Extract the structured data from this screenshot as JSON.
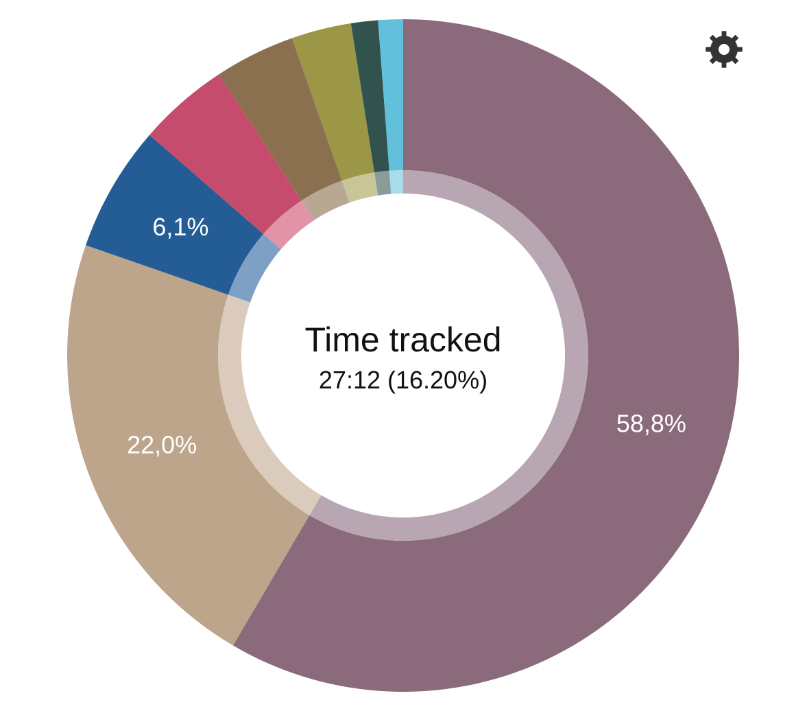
{
  "chart_data": {
    "type": "pie",
    "variant": "donut",
    "center": {
      "title": "Time tracked",
      "subtitle": "27:12 (16.20%)"
    },
    "start_angle_deg": 0,
    "direction": "clockwise",
    "slices": [
      {
        "value": 58.8,
        "label": "58,8%",
        "color": "#8a6a7b",
        "inner_color": "#b8a7b2"
      },
      {
        "value": 22.0,
        "label": "22,0%",
        "color": "#bca58b",
        "inner_color": "#dacbbd"
      },
      {
        "value": 6.1,
        "label": "6,1%",
        "color": "#245d95",
        "inner_color": "#7fa0c5"
      },
      {
        "value": 4.4,
        "label": "",
        "color": "#c64c6d",
        "inner_color": "#e393a8"
      },
      {
        "value": 3.9,
        "label": "",
        "color": "#8b7050",
        "inner_color": "#b8a893"
      },
      {
        "value": 2.9,
        "label": "",
        "color": "#9b9746",
        "inner_color": "#c8c698"
      },
      {
        "value": 1.3,
        "label": "",
        "color": "#32534d",
        "inner_color": "#8a9c99"
      },
      {
        "value": 1.2,
        "label": "",
        "color": "#62c0dc",
        "inner_color": "#a8dced"
      }
    ]
  },
  "toolbar": {
    "settings_icon": "gear-icon",
    "settings_color": "#333333"
  }
}
